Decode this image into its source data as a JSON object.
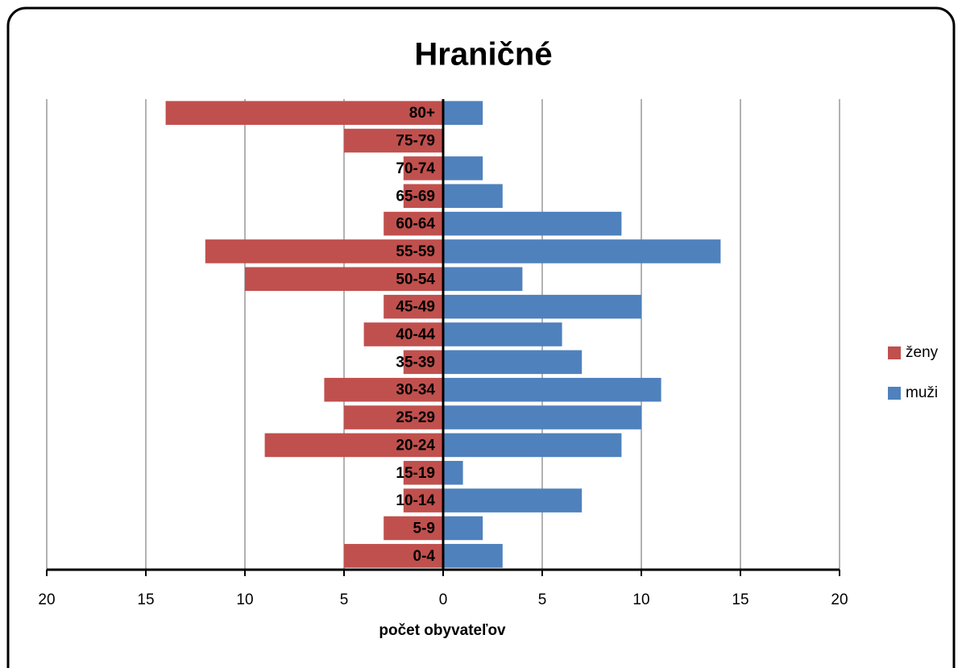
{
  "chart_data": {
    "type": "bar",
    "orientation": "horizontal",
    "stacked": true,
    "title": "Hraničné",
    "xlabel": "počet obyvateľov",
    "categories": [
      "0-4",
      "5-9",
      "10-14",
      "15-19",
      "20-24",
      "25-29",
      "30-34",
      "35-39",
      "40-44",
      "45-49",
      "50-54",
      "55-59",
      "60-64",
      "65-69",
      "70-74",
      "75-79",
      "80+"
    ],
    "series": [
      {
        "name": "ženy",
        "color": "#c0504d",
        "values": [
          -5,
          -3,
          -2,
          -2,
          -9,
          -5,
          -6,
          -2,
          -4,
          -3,
          -10,
          -12,
          -3,
          -2,
          -2,
          -5,
          -14
        ]
      },
      {
        "name": "muži",
        "color": "#4f81bd",
        "values": [
          3,
          2,
          7,
          1,
          9,
          10,
          11,
          7,
          6,
          10,
          4,
          14,
          9,
          3,
          2,
          0,
          2
        ]
      }
    ],
    "xlim": [
      -20,
      20
    ],
    "xticks": [
      {
        "value": -20,
        "label": "20"
      },
      {
        "value": -15,
        "label": "15"
      },
      {
        "value": -10,
        "label": "10"
      },
      {
        "value": -5,
        "label": "5"
      },
      0,
      5,
      10,
      15,
      20
    ],
    "grid": true,
    "legend": "right"
  }
}
